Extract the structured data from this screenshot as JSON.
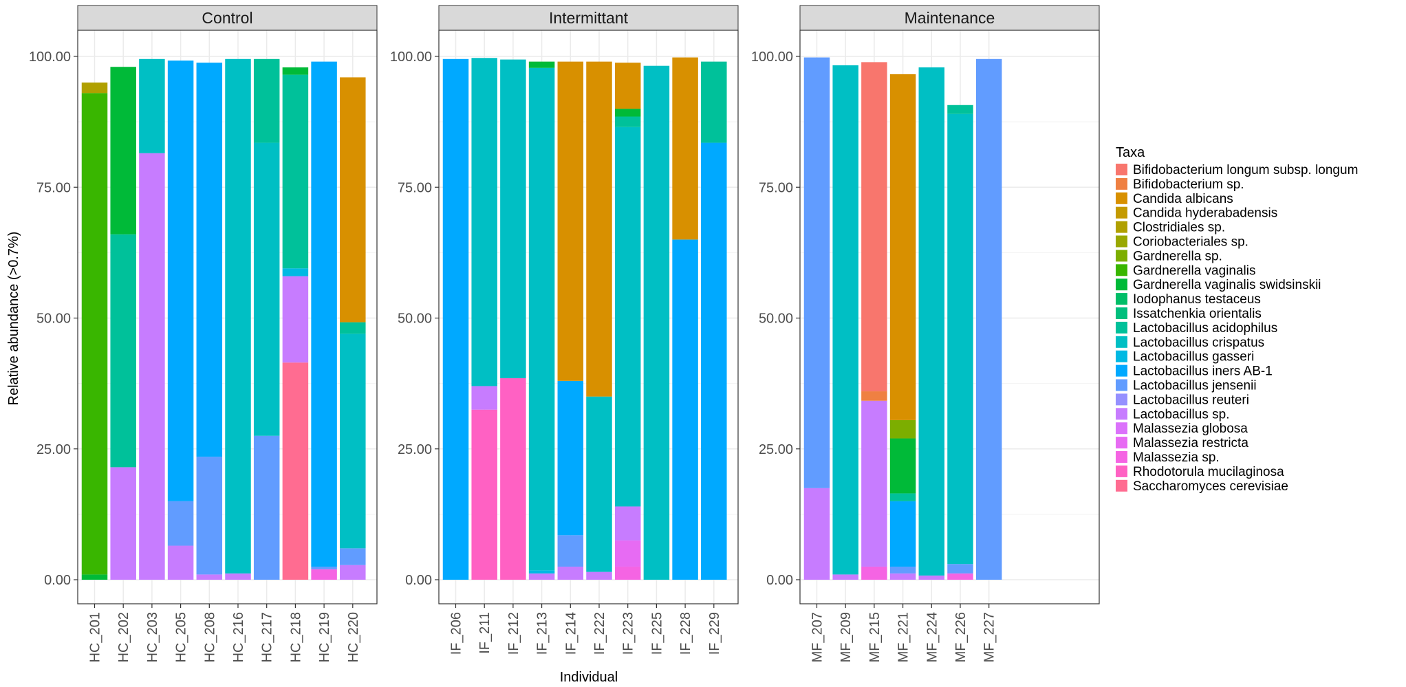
{
  "chart_data": {
    "type": "bar",
    "stacked": true,
    "xlabel": "Individual",
    "ylabel": "Relative abundance (>0.7%)",
    "ylim": [
      0,
      105
    ],
    "yticks": [
      "0.00",
      "25.00",
      "50.00",
      "75.00",
      "100.00"
    ],
    "grid": true,
    "legend": {
      "title": "Taxa",
      "position": "right",
      "entries": [
        {
          "name": "Bifidobacterium longum subsp. longum",
          "color": "#F8766D"
        },
        {
          "name": "Bifidobacterium sp.",
          "color": "#EF8042"
        },
        {
          "name": "Candida albicans",
          "color": "#D89000"
        },
        {
          "name": "Candida hyderabadensis",
          "color": "#C49A00"
        },
        {
          "name": "Clostridiales sp.",
          "color": "#B0A000"
        },
        {
          "name": "Coriobacteriales sp.",
          "color": "#99A800"
        },
        {
          "name": "Gardnerella sp.",
          "color": "#7CAE00"
        },
        {
          "name": "Gardnerella vaginalis",
          "color": "#39B600"
        },
        {
          "name": "Gardnerella vaginalis swidsinskii",
          "color": "#00BA38"
        },
        {
          "name": "Iodophanus testaceus",
          "color": "#00BE67"
        },
        {
          "name": "Issatchenkia orientalis",
          "color": "#00BF7D"
        },
        {
          "name": "Lactobacillus acidophilus",
          "color": "#00C19A"
        },
        {
          "name": "Lactobacillus crispatus",
          "color": "#00BFC4"
        },
        {
          "name": "Lactobacillus gasseri",
          "color": "#00B9E3"
        },
        {
          "name": "Lactobacillus iners AB-1",
          "color": "#00A9FF"
        },
        {
          "name": "Lactobacillus jensenii",
          "color": "#619CFF"
        },
        {
          "name": "Lactobacillus reuteri",
          "color": "#9590FF"
        },
        {
          "name": "Lactobacillus sp.",
          "color": "#C77CFF"
        },
        {
          "name": "Malassezia globosa",
          "color": "#DB72FB"
        },
        {
          "name": "Malassezia restricta",
          "color": "#E76BF3"
        },
        {
          "name": "Malassezia sp.",
          "color": "#F564E3"
        },
        {
          "name": "Rhodotorula mucilaginosa",
          "color": "#FF61C3"
        },
        {
          "name": "Saccharomyces cerevisiae",
          "color": "#FF6C91"
        }
      ]
    },
    "panels": [
      {
        "title": "Control",
        "samples": [
          {
            "id": "HC_201",
            "segments": [
              [
                "Gardnerella vaginalis swidsinskii",
                1
              ],
              [
                "Gardnerella vaginalis",
                92
              ],
              [
                "Clostridiales sp.",
                2
              ]
            ]
          },
          {
            "id": "HC_202",
            "segments": [
              [
                "Lactobacillus sp.",
                21.5
              ],
              [
                "Lactobacillus acidophilus",
                44.5
              ],
              [
                "Gardnerella vaginalis swidsinskii",
                32
              ]
            ]
          },
          {
            "id": "HC_203",
            "segments": [
              [
                "Lactobacillus sp.",
                81.5
              ],
              [
                "Lactobacillus crispatus",
                18
              ]
            ]
          },
          {
            "id": "HC_205",
            "segments": [
              [
                "Lactobacillus sp.",
                6.5
              ],
              [
                "Lactobacillus jensenii",
                8.5
              ],
              [
                "Lactobacillus iners AB-1",
                84.2
              ]
            ]
          },
          {
            "id": "HC_208",
            "segments": [
              [
                "Lactobacillus sp.",
                1
              ],
              [
                "Lactobacillus jensenii",
                22.5
              ],
              [
                "Lactobacillus iners AB-1",
                75.3
              ]
            ]
          },
          {
            "id": "HC_216",
            "segments": [
              [
                "Lactobacillus sp.",
                1.2
              ],
              [
                "Lactobacillus crispatus",
                98.3
              ]
            ]
          },
          {
            "id": "HC_217",
            "segments": [
              [
                "Lactobacillus jensenii",
                27.5
              ],
              [
                "Lactobacillus crispatus",
                56
              ],
              [
                "Lactobacillus acidophilus",
                16
              ]
            ]
          },
          {
            "id": "HC_218",
            "segments": [
              [
                "Saccharomyces cerevisiae",
                41.5
              ],
              [
                "Lactobacillus sp.",
                16.5
              ],
              [
                "Lactobacillus gasseri",
                1.5
              ],
              [
                "Lactobacillus acidophilus",
                37
              ],
              [
                "Gardnerella vaginalis swidsinskii",
                1.4
              ]
            ]
          },
          {
            "id": "HC_219",
            "segments": [
              [
                "Malassezia sp.",
                2
              ],
              [
                "Lactobacillus jensenii",
                0.5
              ],
              [
                "Lactobacillus iners AB-1",
                96.5
              ]
            ]
          },
          {
            "id": "HC_220",
            "segments": [
              [
                "Lactobacillus sp.",
                2.8
              ],
              [
                "Lactobacillus jensenii",
                3.2
              ],
              [
                "Lactobacillus crispatus",
                41
              ],
              [
                "Lactobacillus acidophilus",
                2.2
              ],
              [
                "Candida albicans",
                46.8
              ]
            ]
          }
        ]
      },
      {
        "title": "Intermittant",
        "samples": [
          {
            "id": "IF_206",
            "segments": [
              [
                "Lactobacillus iners AB-1",
                99.5
              ]
            ]
          },
          {
            "id": "IF_211",
            "segments": [
              [
                "Rhodotorula mucilaginosa",
                32.5
              ],
              [
                "Lactobacillus sp.",
                4.5
              ],
              [
                "Lactobacillus crispatus",
                62.7
              ]
            ]
          },
          {
            "id": "IF_212",
            "segments": [
              [
                "Rhodotorula mucilaginosa",
                38.5
              ],
              [
                "Lactobacillus crispatus",
                60.9
              ]
            ]
          },
          {
            "id": "IF_213",
            "segments": [
              [
                "Lactobacillus sp.",
                1.2
              ],
              [
                "Lactobacillus gasseri",
                0.6
              ],
              [
                "Lactobacillus crispatus",
                96
              ],
              [
                "Gardnerella vaginalis swidsinskii",
                1.2
              ]
            ]
          },
          {
            "id": "IF_214",
            "segments": [
              [
                "Lactobacillus sp.",
                2.5
              ],
              [
                "Lactobacillus jensenii",
                6
              ],
              [
                "Lactobacillus iners AB-1",
                29.5
              ],
              [
                "Candida albicans",
                61
              ]
            ]
          },
          {
            "id": "IF_222",
            "segments": [
              [
                "Lactobacillus sp.",
                1.5
              ],
              [
                "Lactobacillus crispatus",
                33.5
              ],
              [
                "Candida albicans",
                64
              ]
            ]
          },
          {
            "id": "IF_223",
            "segments": [
              [
                "Malassezia sp.",
                2.5
              ],
              [
                "Malassezia restricta",
                5
              ],
              [
                "Lactobacillus sp.",
                6.5
              ],
              [
                "Lactobacillus crispatus",
                72.5
              ],
              [
                "Lactobacillus acidophilus",
                2
              ],
              [
                "Gardnerella vaginalis swidsinskii",
                1.5
              ],
              [
                "Candida albicans",
                8.8
              ]
            ]
          },
          {
            "id": "IF_225",
            "segments": [
              [
                "Lactobacillus crispatus",
                98.2
              ]
            ]
          },
          {
            "id": "IF_228",
            "segments": [
              [
                "Lactobacillus iners AB-1",
                65
              ],
              [
                "Candida albicans",
                34.8
              ]
            ]
          },
          {
            "id": "IF_229",
            "segments": [
              [
                "Lactobacillus iners AB-1",
                83.5
              ],
              [
                "Lactobacillus acidophilus",
                15.5
              ]
            ]
          }
        ]
      },
      {
        "title": "Maintenance",
        "samples": [
          {
            "id": "MF_207",
            "segments": [
              [
                "Lactobacillus sp.",
                17.5
              ],
              [
                "Lactobacillus jensenii",
                82.3
              ]
            ]
          },
          {
            "id": "MF_209",
            "segments": [
              [
                "Lactobacillus sp.",
                1
              ],
              [
                "Lactobacillus crispatus",
                97.3
              ]
            ]
          },
          {
            "id": "MF_215",
            "segments": [
              [
                "Malassezia sp.",
                2.5
              ],
              [
                "Lactobacillus sp.",
                31.7
              ],
              [
                "Bifidobacterium sp.",
                1.8
              ],
              [
                "Bifidobacterium longum subsp. longum",
                62.9
              ]
            ]
          },
          {
            "id": "MF_221",
            "segments": [
              [
                "Lactobacillus sp.",
                1.2
              ],
              [
                "Lactobacillus jensenii",
                1.3
              ],
              [
                "Lactobacillus iners AB-1",
                12.5
              ],
              [
                "Lactobacillus acidophilus",
                1.5
              ],
              [
                "Gardnerella vaginalis swidsinskii",
                10.5
              ],
              [
                "Gardnerella sp.",
                3.5
              ],
              [
                "Candida albicans",
                66.1
              ]
            ]
          },
          {
            "id": "MF_224",
            "segments": [
              [
                "Lactobacillus sp.",
                0.8
              ],
              [
                "Lactobacillus crispatus",
                97.1
              ]
            ]
          },
          {
            "id": "MF_226",
            "segments": [
              [
                "Malassezia sp.",
                1.2
              ],
              [
                "Lactobacillus jensenii",
                1.8
              ],
              [
                "Lactobacillus crispatus",
                86
              ],
              [
                "Lactobacillus acidophilus",
                1.7
              ]
            ]
          },
          {
            "id": "MF_227",
            "segments": [
              [
                "Lactobacillus jensenii",
                99.5
              ]
            ]
          }
        ]
      }
    ]
  }
}
